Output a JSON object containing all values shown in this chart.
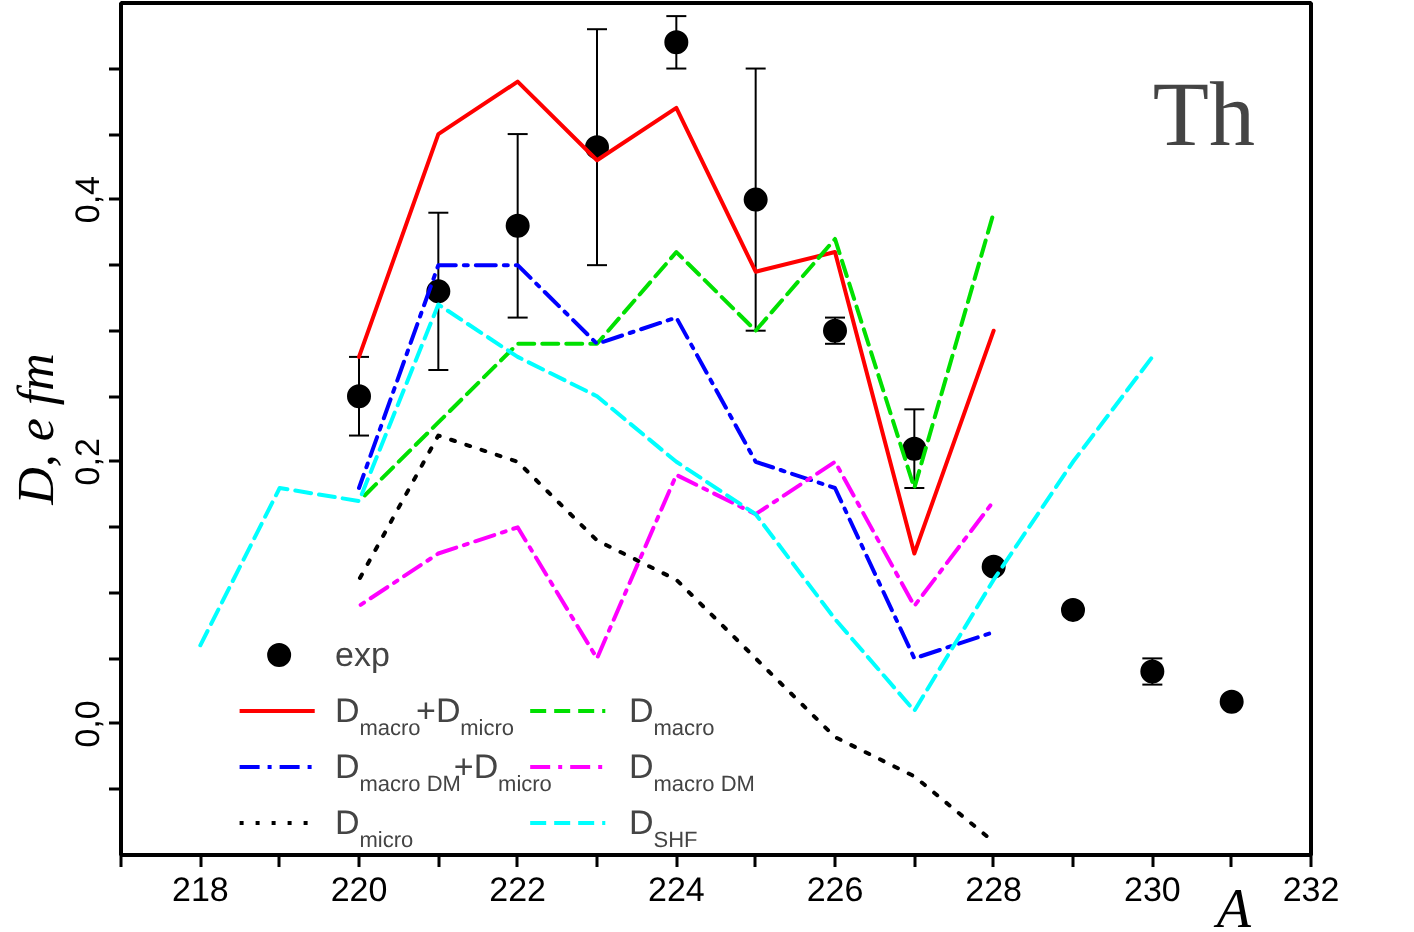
{
  "chart_data": {
    "type": "line",
    "title": "Th",
    "xlabel": "A",
    "ylabel": "D, e fm",
    "xlim": [
      217,
      232
    ],
    "ylim": [
      -0.1,
      0.55
    ],
    "xticks": [
      {
        "value": 217,
        "label": null
      },
      218,
      {
        "value": 219,
        "label": null
      },
      220,
      {
        "value": 221,
        "label": null
      },
      222,
      {
        "value": 223,
        "label": null
      },
      224,
      {
        "value": 225,
        "label": null
      },
      226,
      {
        "value": 227,
        "label": null
      },
      228,
      {
        "value": 229,
        "label": null
      },
      230,
      {
        "value": 231,
        "label": null
      },
      232
    ],
    "yticks": [
      {
        "value": -0.05,
        "label": null
      },
      {
        "value": 0,
        "label": "0,0"
      },
      {
        "value": 0.05,
        "label": null
      },
      {
        "value": 0.1,
        "label": null
      },
      {
        "value": 0.15,
        "label": null
      },
      {
        "value": 0.2,
        "label": "0,2"
      },
      {
        "value": 0.25,
        "label": null
      },
      {
        "value": 0.3,
        "label": null
      },
      {
        "value": 0.35,
        "label": null
      },
      {
        "value": 0.4,
        "label": "0,4"
      },
      {
        "value": 0.45,
        "label": null
      },
      {
        "value": 0.5,
        "label": null
      }
    ],
    "grid": false,
    "legend": "bottom left",
    "series": [
      {
        "name": "exp",
        "type": "scatter",
        "marker": "circle",
        "color": "#000000",
        "x": [
          220,
          221,
          222,
          223,
          224,
          225,
          226,
          227,
          228,
          229,
          230,
          231
        ],
        "values": [
          0.25,
          0.33,
          0.38,
          0.44,
          0.52,
          0.4,
          0.3,
          0.21,
          0.12,
          0.087,
          0.04,
          0.017
        ],
        "errors": [
          [
            0.22,
            0.28
          ],
          [
            0.27,
            0.39
          ],
          [
            0.31,
            0.45
          ],
          [
            0.35,
            0.53
          ],
          [
            0.5,
            0.54
          ],
          [
            0.3,
            0.5
          ],
          [
            0.29,
            0.31
          ],
          [
            0.18,
            0.24
          ],
          null,
          null,
          [
            0.03,
            0.05
          ],
          null
        ]
      },
      {
        "name": "D$_{macro}$+D$_{micro}$",
        "color": "#ff0000",
        "line_style": "solid",
        "x": [
          220,
          221,
          222,
          223,
          224,
          225,
          226,
          227,
          228
        ],
        "values": [
          0.28,
          0.45,
          0.49,
          0.43,
          0.47,
          0.345,
          0.36,
          0.13,
          0.3
        ]
      },
      {
        "name": "D$_{macro}$",
        "color": "#00e000",
        "line_style": "dashed",
        "x": [
          220,
          221,
          222,
          223,
          224,
          225,
          226,
          227,
          228
        ],
        "values": [
          0.17,
          0.23,
          0.29,
          0.29,
          0.36,
          0.3,
          0.37,
          0.18,
          0.39
        ]
      },
      {
        "name": "D$_{macro DM}$+D$_{micro}$",
        "color": "#0000ff",
        "line_style": "dashdot",
        "x": [
          220,
          221,
          222,
          223,
          224,
          225,
          226,
          227,
          228
        ],
        "values": [
          0.18,
          0.35,
          0.35,
          0.29,
          0.31,
          0.2,
          0.18,
          0.05,
          0.07
        ]
      },
      {
        "name": "D$_{macro DM}$",
        "color": "#ff00ff",
        "line_style": "dashdot",
        "x": [
          220,
          221,
          222,
          223,
          224,
          225,
          226,
          227,
          228
        ],
        "values": [
          0.09,
          0.13,
          0.15,
          0.05,
          0.19,
          0.16,
          0.2,
          0.09,
          0.17
        ]
      },
      {
        "name": "D$_{micro}$",
        "color": "#000000",
        "line_style": "dotted",
        "x": [
          220,
          221,
          222,
          223,
          224,
          225,
          226,
          227,
          228
        ],
        "values": [
          0.11,
          0.22,
          0.2,
          0.14,
          0.11,
          0.05,
          -0.01,
          -0.04,
          -0.09
        ]
      },
      {
        "name": "D$_{SHF}$",
        "color": "#00ffff",
        "line_style": "dashed",
        "x": [
          218,
          219,
          220,
          221,
          222,
          223,
          224,
          225,
          226,
          227,
          228,
          229,
          230
        ],
        "values": [
          0.06,
          0.18,
          0.17,
          0.32,
          0.28,
          0.25,
          0.2,
          0.16,
          0.08,
          0.01,
          0.11,
          0.2,
          0.28
        ]
      }
    ]
  }
}
